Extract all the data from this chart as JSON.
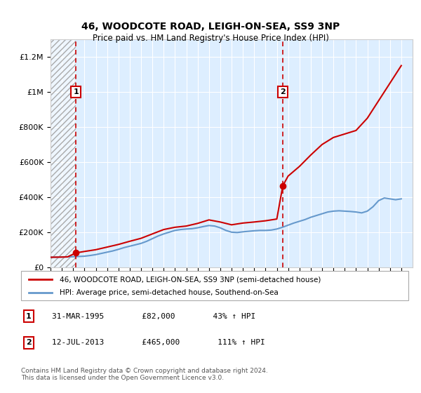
{
  "title": "46, WOODCOTE ROAD, LEIGH-ON-SEA, SS9 3NP",
  "subtitle": "Price paid vs. HM Land Registry's House Price Index (HPI)",
  "legend_line1": "46, WOODCOTE ROAD, LEIGH-ON-SEA, SS9 3NP (semi-detached house)",
  "legend_line2": "HPI: Average price, semi-detached house, Southend-on-Sea",
  "annotation1_label": "1",
  "annotation1_date": "31-MAR-1995",
  "annotation1_price": 82000,
  "annotation1_text": "31-MAR-1995        £82,000        43% ↑ HPI",
  "annotation2_label": "2",
  "annotation2_date": "12-JUL-2013",
  "annotation2_price": 465000,
  "annotation2_text": "12-JUL-2013        £465,000        111% ↑ HPI",
  "footer": "Contains HM Land Registry data © Crown copyright and database right 2024.\nThis data is licensed under the Open Government Licence v3.0.",
  "red_line_color": "#cc0000",
  "blue_line_color": "#6699cc",
  "bg_color": "#ddeeff",
  "hatch_color": "#bbbbcc",
  "sale1_year": 1995.25,
  "sale2_year": 2013.53,
  "ylim_max": 1300000,
  "yticks": [
    0,
    200000,
    400000,
    600000,
    800000,
    1000000,
    1200000
  ],
  "ytick_labels": [
    "£0",
    "£200K",
    "£400K",
    "£600K",
    "£800K",
    "£1M",
    "£1.2M"
  ],
  "xstart": 1993,
  "xend": 2025,
  "xticks": [
    1993,
    1994,
    1995,
    1996,
    1997,
    1998,
    1999,
    2000,
    2001,
    2002,
    2003,
    2004,
    2005,
    2006,
    2007,
    2008,
    2009,
    2010,
    2011,
    2012,
    2013,
    2014,
    2015,
    2016,
    2017,
    2018,
    2019,
    2020,
    2021,
    2022,
    2023,
    2024
  ],
  "hpi_x": [
    1993.0,
    1993.5,
    1994.0,
    1994.5,
    1995.0,
    1995.5,
    1996.0,
    1996.5,
    1997.0,
    1997.5,
    1998.0,
    1998.5,
    1999.0,
    1999.5,
    2000.0,
    2000.5,
    2001.0,
    2001.5,
    2002.0,
    2002.5,
    2003.0,
    2003.5,
    2004.0,
    2004.5,
    2005.0,
    2005.5,
    2006.0,
    2006.5,
    2007.0,
    2007.5,
    2008.0,
    2008.5,
    2009.0,
    2009.5,
    2010.0,
    2010.5,
    2011.0,
    2011.5,
    2012.0,
    2012.5,
    2013.0,
    2013.5,
    2014.0,
    2014.5,
    2015.0,
    2015.5,
    2016.0,
    2016.5,
    2017.0,
    2017.5,
    2018.0,
    2018.5,
    2019.0,
    2019.5,
    2020.0,
    2020.5,
    2021.0,
    2021.5,
    2022.0,
    2022.5,
    2023.0,
    2023.5,
    2024.0
  ],
  "hpi_y": [
    57000,
    57500,
    58000,
    59000,
    60000,
    61500,
    63000,
    67000,
    72000,
    79000,
    86000,
    93000,
    102000,
    112000,
    120000,
    128000,
    136000,
    148000,
    163000,
    178000,
    190000,
    200000,
    210000,
    215000,
    218000,
    220000,
    225000,
    232000,
    238000,
    235000,
    225000,
    210000,
    200000,
    198000,
    202000,
    205000,
    208000,
    210000,
    210000,
    212000,
    218000,
    228000,
    240000,
    252000,
    262000,
    272000,
    285000,
    295000,
    305000,
    315000,
    320000,
    322000,
    320000,
    318000,
    315000,
    310000,
    320000,
    345000,
    380000,
    395000,
    390000,
    385000,
    390000
  ],
  "price_x": [
    1993.0,
    1993.5,
    1994.0,
    1994.5,
    1995.25,
    1996.0,
    1997.0,
    1998.0,
    1999.0,
    2000.0,
    2001.0,
    2002.0,
    2003.0,
    2004.0,
    2005.0,
    2006.0,
    2007.0,
    2008.0,
    2009.0,
    2010.0,
    2011.0,
    2012.0,
    2013.0,
    2013.53,
    2014.0,
    2015.0,
    2016.0,
    2017.0,
    2018.0,
    2019.0,
    2020.0,
    2021.0,
    2022.0,
    2023.0,
    2023.5,
    2024.0
  ],
  "price_y": [
    57000,
    57500,
    58000,
    59000,
    82000,
    90000,
    100000,
    115000,
    130000,
    148000,
    165000,
    190000,
    215000,
    228000,
    235000,
    250000,
    270000,
    258000,
    242000,
    252000,
    258000,
    265000,
    275000,
    465000,
    520000,
    575000,
    640000,
    700000,
    740000,
    760000,
    780000,
    850000,
    950000,
    1050000,
    1100000,
    1150000
  ]
}
